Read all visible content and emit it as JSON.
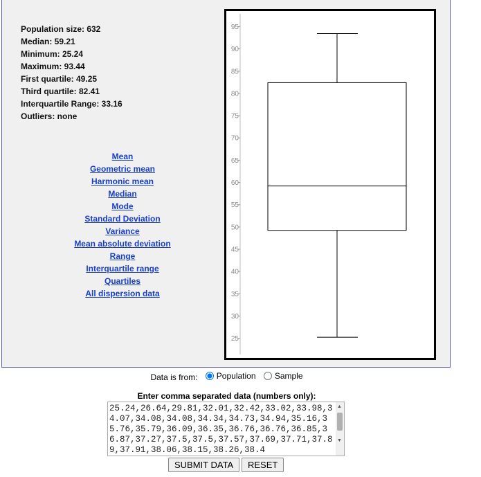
{
  "stats": [
    "Population size: 632",
    "Median: 59.21",
    "Minimum: 25.24",
    "Maximum: 93.44",
    "First quartile: 49.25",
    "Third quartile: 82.41",
    "Interquartile Range: 33.16",
    "Outliers: none"
  ],
  "links": [
    "Mean",
    "Geometric mean",
    "Harmonic mean",
    "Median",
    "Mode",
    "Standard Deviation",
    "Variance",
    "Mean absolute deviation",
    "Range",
    "Interquartile range",
    "Quartiles",
    "All dispersion data"
  ],
  "chart_data": {
    "type": "box",
    "title": "",
    "ylabel": "",
    "ylim": [
      22,
      96
    ],
    "yticks": [
      25,
      30,
      35,
      40,
      45,
      50,
      55,
      60,
      65,
      70,
      75,
      80,
      85,
      90,
      95
    ],
    "min": 25.24,
    "q1": 49.25,
    "median": 59.21,
    "q3": 82.41,
    "max": 93.44
  },
  "form": {
    "source_label": "Data is from:",
    "population_label": "Population",
    "sample_label": "Sample",
    "selected": "Population",
    "data_label": "Enter comma separated data (numbers only):",
    "data_value": "25.24,26.64,29.81,32.01,32.42,33.02,33.98,34.07,34.08,34.08,34.34,34.73,34.94,35.16,35.76,35.79,36.09,36.35,36.76,36.76,36.85,36.87,37.27,37.5,37.5,37.57,37.69,37.71,37.89,37.91,38.06,38.15,38.26,38.4",
    "submit_label": "SUBMIT DATA",
    "reset_label": "RESET"
  }
}
